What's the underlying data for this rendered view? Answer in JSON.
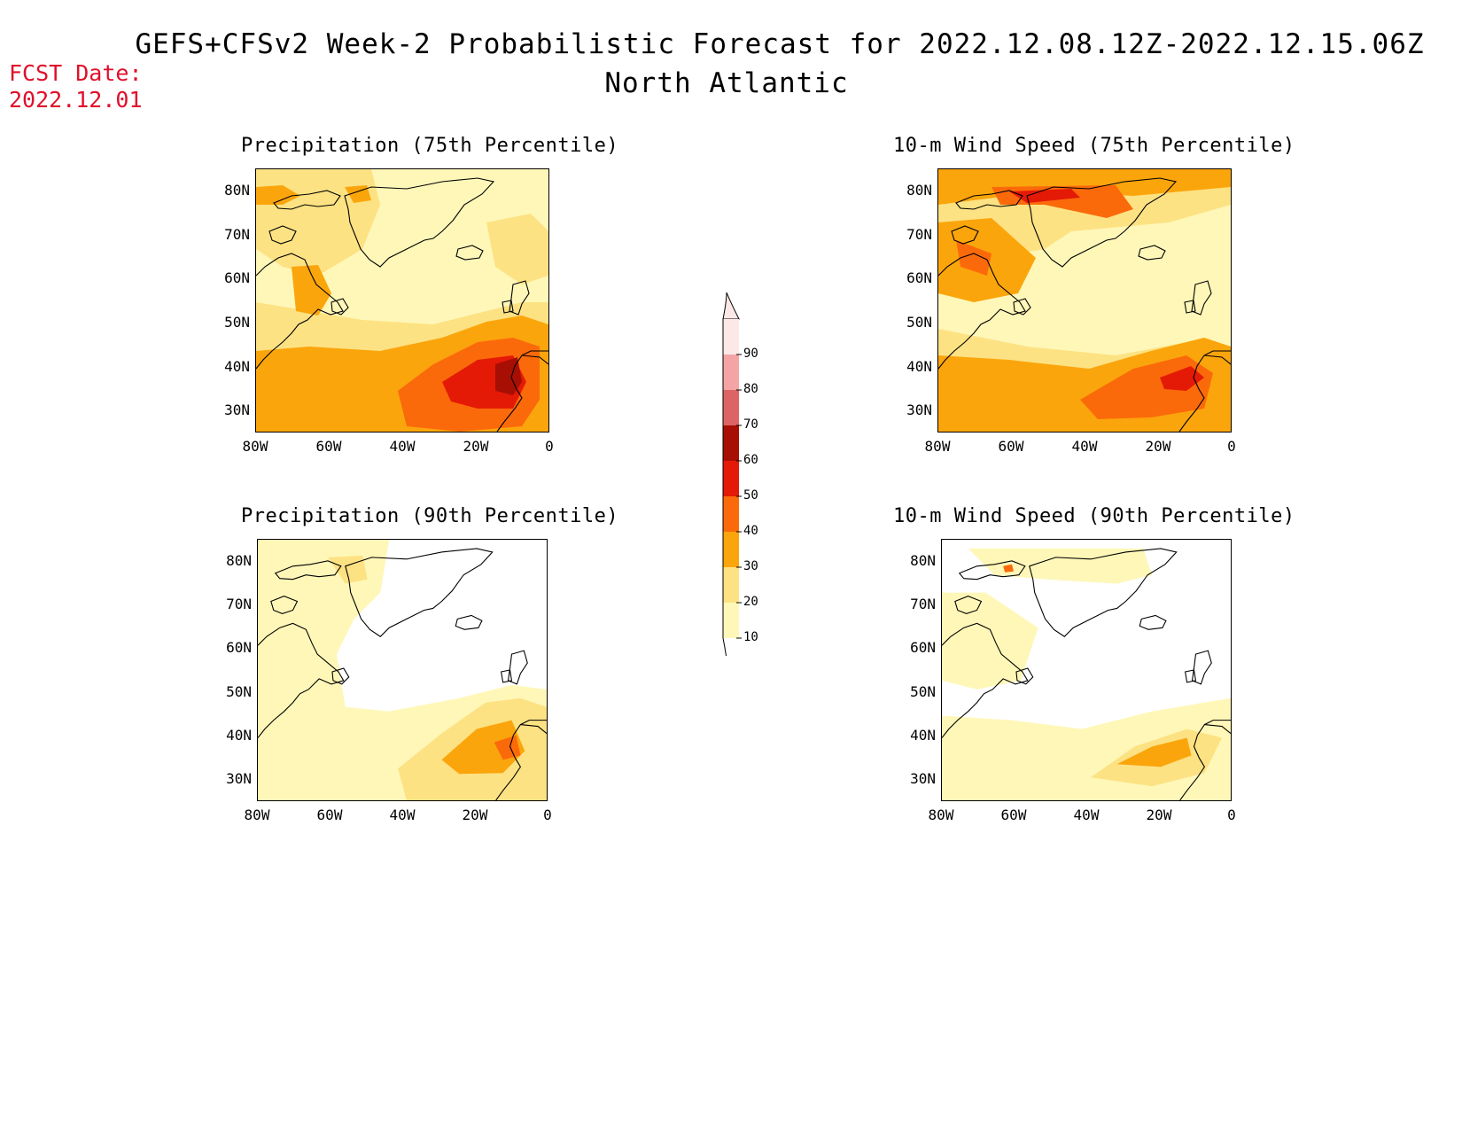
{
  "header": {
    "title": "GEFS+CFSv2 Week-2 Probabilistic Forecast for 2022.12.08.12Z-2022.12.15.06Z",
    "region": "North Atlantic",
    "fcst_label": "FCST Date:",
    "fcst_date": "2022.12.01"
  },
  "panels": [
    {
      "id": "precip75",
      "title": "Precipitation (75th Percentile)"
    },
    {
      "id": "wind75",
      "title": "10-m Wind Speed (75th Percentile)"
    },
    {
      "id": "precip90",
      "title": "Precipitation (90th Percentile)"
    },
    {
      "id": "wind90",
      "title": "10-m Wind Speed (90th Percentile)"
    }
  ],
  "axes": {
    "lat_labels": [
      "80N",
      "70N",
      "60N",
      "50N",
      "40N",
      "30N"
    ],
    "lon_labels": [
      "80W",
      "60W",
      "40W",
      "20W",
      "0"
    ]
  },
  "colorbar": {
    "levels": [
      "10",
      "20",
      "30",
      "40",
      "50",
      "60",
      "70",
      "80",
      "90"
    ],
    "colors": [
      "#fff7b8",
      "#fde283",
      "#fba50c",
      "#fb6a0a",
      "#e41a06",
      "#a70f04",
      "#dc6464",
      "#f4a4a4",
      "#fde8e8"
    ]
  }
}
